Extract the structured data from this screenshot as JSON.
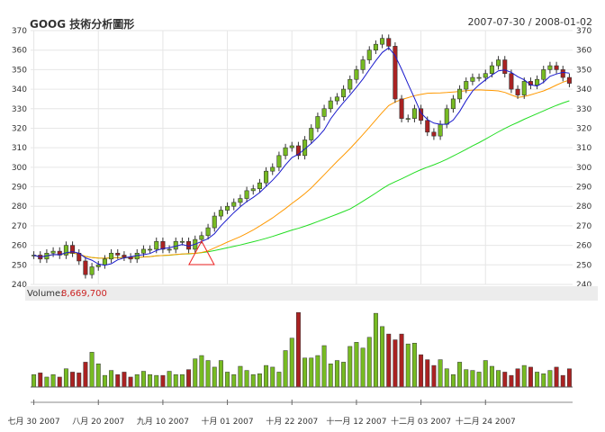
{
  "header": {
    "title": "GOOG 技術分析圖形",
    "date_range": "2007-07-30 / 2008-01-02"
  },
  "volume_panel": {
    "label": "Volume:",
    "value": "8,669,700"
  },
  "colors": {
    "up": "#77bb22",
    "down": "#aa2222",
    "ma_short": "#1a1acc",
    "ma_mid": "#ff9900",
    "ma_long": "#22dd22",
    "marker": "#ee2222",
    "grid": "#e6e6e6"
  },
  "chart_data": {
    "type": "candlestick",
    "ylim": [
      240,
      370
    ],
    "y_ticks": [
      240,
      250,
      260,
      270,
      280,
      290,
      300,
      310,
      320,
      330,
      340,
      350,
      360,
      370
    ],
    "x_ticks": [
      "七月 30 2007",
      "八月 20 2007",
      "九月 10 2007",
      "十月 01 2007",
      "十月 22 2007",
      "十一月 12 2007",
      "十二月 03 2007",
      "十二月 24 2007"
    ],
    "x_tick_index": [
      0,
      10,
      20,
      30,
      40,
      50,
      60,
      70
    ],
    "closes": [
      255,
      253,
      256,
      257,
      255,
      260,
      256,
      252,
      245,
      249,
      250,
      253,
      256,
      255,
      254,
      253,
      256,
      258,
      258,
      262,
      258,
      258,
      262,
      262,
      258,
      263,
      265,
      269,
      275,
      278,
      280,
      282,
      284,
      288,
      289,
      292,
      298,
      300,
      306,
      310,
      311,
      306,
      314,
      320,
      326,
      330,
      334,
      336,
      340,
      345,
      350,
      355,
      360,
      363,
      366,
      362,
      335,
      325,
      325,
      330,
      324,
      318,
      316,
      322,
      330,
      335,
      340,
      344,
      346,
      346,
      348,
      352,
      355,
      348,
      340,
      337,
      344,
      342,
      345,
      350,
      352,
      350,
      346,
      343
    ],
    "volume_levels": [
      0.15,
      0.17,
      0.12,
      0.15,
      0.12,
      0.22,
      0.18,
      0.17,
      0.3,
      0.42,
      0.28,
      0.14,
      0.2,
      0.15,
      0.18,
      0.12,
      0.15,
      0.19,
      0.15,
      0.14,
      0.14,
      0.19,
      0.15,
      0.15,
      0.21,
      0.34,
      0.38,
      0.32,
      0.24,
      0.32,
      0.18,
      0.15,
      0.25,
      0.2,
      0.15,
      0.16,
      0.26,
      0.24,
      0.18,
      0.44,
      0.59,
      0.9,
      0.35,
      0.35,
      0.38,
      0.5,
      0.28,
      0.32,
      0.3,
      0.49,
      0.54,
      0.47,
      0.6,
      0.89,
      0.73,
      0.64,
      0.57,
      0.64,
      0.52,
      0.53,
      0.39,
      0.33,
      0.26,
      0.33,
      0.22,
      0.15,
      0.3,
      0.21,
      0.2,
      0.18,
      0.32,
      0.25,
      0.2,
      0.18,
      0.14,
      0.22,
      0.26,
      0.24,
      0.18,
      0.16,
      0.2,
      0.24,
      0.14,
      0.22
    ],
    "ma_short_period": 5,
    "ma_mid_period": 20,
    "ma_long_period": 50,
    "signal_marker": {
      "index": 26,
      "price": 252
    }
  }
}
